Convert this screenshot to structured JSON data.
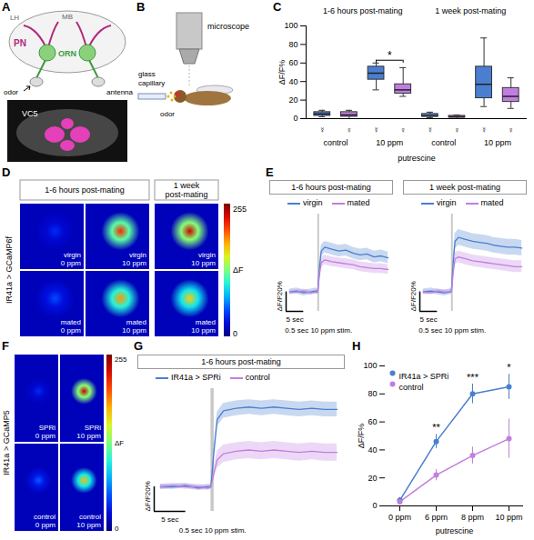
{
  "diagrams": [
    {
      "panel": "A",
      "labels": {
        "lh": "LH",
        "mb": "MB",
        "pn": "PN",
        "orn": "ORN",
        "odor": "odor",
        "antenna": "antenna",
        "glomerulus": "VC5"
      }
    },
    {
      "panel": "B",
      "labels": {
        "microscope": "microscope",
        "capillary": "glass capillary",
        "odor": "odor"
      }
    }
  ],
  "image_panels": [
    {
      "panel": "D",
      "side_label": "IR41a > GCaMP6f",
      "sections": [
        {
          "title": "1-6 hours post-mating",
          "columns": [
            [
              {
                "label": "virgin",
                "condition": "0 ppm",
                "peak": 40
              },
              {
                "label": "mated",
                "condition": "0 ppm",
                "peak": 50
              }
            ],
            [
              {
                "label": "virgin",
                "condition": "10 ppm",
                "peak": 215
              },
              {
                "label": "mated",
                "condition": "10 ppm",
                "peak": 185
              }
            ]
          ]
        },
        {
          "title": "1 week post-mating",
          "columns": [
            [
              {
                "label": "virgin",
                "condition": "10 ppm",
                "peak": 235
              },
              {
                "label": "mated",
                "condition": "10 ppm",
                "peak": 170
              }
            ]
          ]
        }
      ],
      "colorbar": {
        "label": "ΔF",
        "range": [
          0,
          255
        ],
        "ticks": [
          0,
          255
        ]
      }
    },
    {
      "panel": "F",
      "side_label": "IR41a > GCaMP5",
      "sections": [
        {
          "columns": [
            [
              {
                "label": "SPRi",
                "condition": "0 ppm",
                "peak": 40
              },
              {
                "label": "control",
                "condition": "0 ppm",
                "peak": 55
              }
            ],
            [
              {
                "label": "SPRi",
                "condition": "10 ppm",
                "peak": 235
              },
              {
                "label": "control",
                "condition": "10 ppm",
                "peak": 175
              }
            ]
          ]
        }
      ],
      "colorbar": {
        "label": "ΔF",
        "range": [
          0,
          255
        ],
        "ticks": [
          0,
          255
        ]
      }
    }
  ],
  "chart_data": [
    {
      "panel": "C",
      "type": "box",
      "sections": [
        "1-6 hours post-mating",
        "1 week post-mating"
      ],
      "groups": [
        "control",
        "10 ppm",
        "control",
        "10 ppm"
      ],
      "categories": [
        "☿",
        "♀",
        "☿",
        "♀",
        "☿",
        "♀",
        "☿",
        "♀"
      ],
      "xlabel": "putrescine",
      "ylabel": "ΔF/F%",
      "ylim": [
        0,
        100
      ],
      "yticks": [
        0,
        20,
        40,
        60,
        80,
        100
      ],
      "grid": false,
      "colors": [
        "#4a7fd0",
        "#c07ee0",
        "#4a7fd0",
        "#c07ee0",
        "#4a7fd0",
        "#c07ee0",
        "#4a7fd0",
        "#c07ee0"
      ],
      "whisker_low": [
        2,
        0,
        31,
        24,
        1,
        0,
        13,
        11
      ],
      "q1": [
        3,
        2,
        42,
        27,
        2,
        1,
        22,
        18
      ],
      "median": [
        5,
        4,
        49,
        31,
        3,
        2,
        37,
        24
      ],
      "q3": [
        7,
        7,
        56,
        37,
        5,
        3,
        56,
        33
      ],
      "whisker_high": [
        9,
        9,
        60,
        55,
        7,
        4,
        87,
        44
      ],
      "annotations": [
        {
          "text": "*",
          "from": 2,
          "to": 3,
          "y": 63
        }
      ]
    },
    {
      "panel": "E",
      "type": "line",
      "legend": "top",
      "tick_labels": false,
      "x": [
        -8,
        -6,
        -4,
        -2,
        -0.5,
        0,
        0.5,
        1,
        2,
        4,
        6,
        8,
        10,
        12,
        14,
        16,
        18,
        20
      ],
      "xlim": [
        -9,
        21
      ],
      "ylim": [
        -20,
        80
      ],
      "xticks": [],
      "yticks": [],
      "scale_bar": {
        "x": 5,
        "x_label": "5 sec",
        "y": 20,
        "y_label": "ΔF/F20%"
      },
      "stimulus": {
        "start": 0,
        "end": 0.5,
        "label": "0.5 sec 10 ppm stim."
      },
      "subplots": [
        {
          "title": "1-6 hours post-mating",
          "series": [
            {
              "name": "virgin",
              "color": "#4a7fd0",
              "values": [
                0,
                1,
                -1,
                0,
                1,
                0,
                25,
                42,
                46,
                44,
                42,
                43,
                40,
                38,
                39,
                36,
                37,
                35
              ],
              "error": [
                3,
                3,
                3,
                3,
                3,
                3,
                5,
                6,
                6,
                6,
                6,
                6,
                6,
                6,
                6,
                6,
                6,
                6
              ]
            },
            {
              "name": "mated",
              "color": "#c07ee0",
              "values": [
                0,
                0,
                1,
                -1,
                0,
                0,
                18,
                30,
                33,
                31,
                30,
                29,
                28,
                26,
                25,
                24,
                24,
                23
              ],
              "error": [
                2,
                2,
                2,
                2,
                2,
                2,
                4,
                5,
                5,
                5,
                5,
                5,
                5,
                5,
                5,
                5,
                5,
                5
              ]
            }
          ]
        },
        {
          "title": "1 week post-mating",
          "series": [
            {
              "name": "virgin",
              "color": "#4a7fd0",
              "values": [
                0,
                1,
                0,
                -1,
                0,
                1,
                30,
                52,
                56,
                54,
                52,
                51,
                50,
                48,
                47,
                46,
                46,
                45
              ],
              "error": [
                3,
                3,
                3,
                3,
                3,
                3,
                7,
                8,
                8,
                8,
                8,
                8,
                8,
                8,
                8,
                8,
                8,
                8
              ]
            },
            {
              "name": "mated",
              "color": "#c07ee0",
              "values": [
                0,
                -1,
                1,
                0,
                0,
                0,
                20,
                34,
                36,
                34,
                32,
                31,
                30,
                29,
                28,
                27,
                26,
                26
              ],
              "error": [
                2,
                2,
                2,
                2,
                2,
                2,
                5,
                6,
                6,
                6,
                6,
                6,
                6,
                6,
                6,
                6,
                6,
                6
              ]
            }
          ]
        }
      ]
    },
    {
      "panel": "G",
      "type": "line",
      "legend": "top",
      "tick_labels": false,
      "title": "1-6 hours post-mating",
      "x": [
        -8,
        -6,
        -4,
        -2,
        -0.5,
        0,
        0.5,
        1,
        2,
        4,
        6,
        8,
        10,
        12,
        14,
        16,
        18,
        20
      ],
      "xlim": [
        -9,
        21
      ],
      "ylim": [
        -20,
        80
      ],
      "xticks": [],
      "yticks": [],
      "scale_bar": {
        "x": 5,
        "x_label": "5 sec",
        "y": 20,
        "y_label": "ΔF/F20%"
      },
      "stimulus": {
        "start": 0,
        "end": 0.5,
        "label": "0.5 sec 10 ppm stim."
      },
      "series": [
        {
          "name": "IR41a > SPRi",
          "color": "#4a7fd0",
          "values": [
            0,
            0,
            1,
            -1,
            0,
            0,
            30,
            55,
            62,
            64,
            65,
            64,
            65,
            64,
            63,
            64,
            63,
            63
          ],
          "error": [
            2,
            2,
            2,
            2,
            2,
            2,
            5,
            6,
            6,
            6,
            6,
            6,
            6,
            6,
            6,
            6,
            6,
            6
          ]
        },
        {
          "name": "control",
          "color": "#c07ee0",
          "values": [
            0,
            1,
            0,
            0,
            -1,
            0,
            12,
            22,
            27,
            29,
            30,
            29,
            30,
            29,
            28,
            29,
            28,
            28
          ],
          "error": [
            2,
            2,
            2,
            2,
            2,
            2,
            5,
            7,
            7,
            7,
            7,
            7,
            7,
            7,
            7,
            7,
            7,
            7
          ]
        }
      ]
    },
    {
      "panel": "H",
      "type": "line",
      "legend": "top-left",
      "marker": "circle",
      "grid": false,
      "categories": [
        "0 ppm",
        "6 ppm",
        "8 ppm",
        "10 ppm"
      ],
      "xlabel": "putrescine",
      "ylabel": "ΔF/F%",
      "ylim": [
        0,
        100
      ],
      "yticks": [
        0,
        20,
        40,
        60,
        80,
        100
      ],
      "series": [
        {
          "name": "IR41a > SPRi",
          "color": "#4a7fd0",
          "values": [
            4,
            46,
            80,
            85
          ],
          "error": [
            2,
            5,
            7,
            9
          ]
        },
        {
          "name": "control",
          "color": "#c07ee0",
          "values": [
            3,
            22,
            36,
            48
          ],
          "error": [
            1,
            4,
            6,
            14
          ]
        }
      ],
      "annotations": [
        {
          "x": "6 ppm",
          "text": "**"
        },
        {
          "x": "8 ppm",
          "text": "***"
        },
        {
          "x": "10 ppm",
          "text": "*"
        }
      ]
    }
  ]
}
